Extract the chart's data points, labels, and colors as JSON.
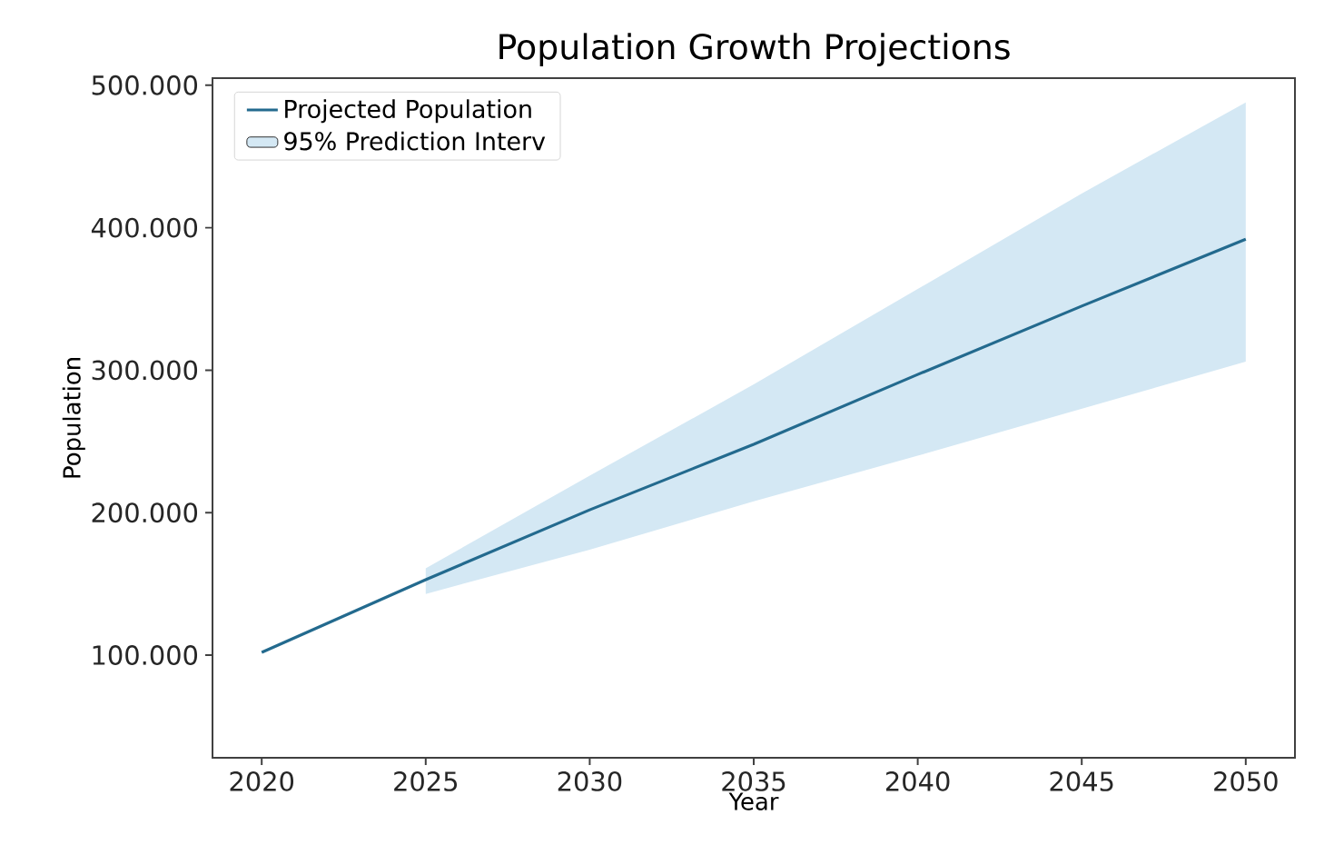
{
  "chart_data": {
    "type": "line",
    "title": "Population Growth Projections",
    "xlabel": "Year",
    "ylabel": "Population",
    "x": [
      2020,
      2025,
      2030,
      2035,
      2040,
      2045,
      2050
    ],
    "series": [
      {
        "name": "Projected Population",
        "color": "#236a8e",
        "values": [
          102000,
          153000,
          202000,
          248000,
          297000,
          345000,
          392000
        ]
      },
      {
        "name": "95% Prediction Interv",
        "color": "#d4e8f4",
        "values": [
          null,
          null,
          null,
          null,
          null,
          null,
          null
        ],
        "lower": [
          null,
          143000,
          174000,
          208000,
          240000,
          273000,
          306000
        ],
        "upper": [
          null,
          161000,
          226000,
          290000,
          357000,
          424000,
          488000
        ]
      }
    ],
    "xlim": [
      2018.5,
      2051.5
    ],
    "xticks": [
      2020,
      2025,
      2030,
      2035,
      2040,
      2045,
      2050
    ],
    "ylim": [
      28000,
      505000
    ],
    "yticks": [
      {
        "value": 100000,
        "label": "100.000"
      },
      {
        "value": 200000,
        "label": "200.000"
      },
      {
        "value": 300000,
        "label": "300.000"
      },
      {
        "value": 400000,
        "label": "400.000"
      },
      {
        "value": 500000,
        "label": "500.000"
      }
    ],
    "legend": "top left",
    "grid": false,
    "marker": "none",
    "line_style": "solid"
  }
}
